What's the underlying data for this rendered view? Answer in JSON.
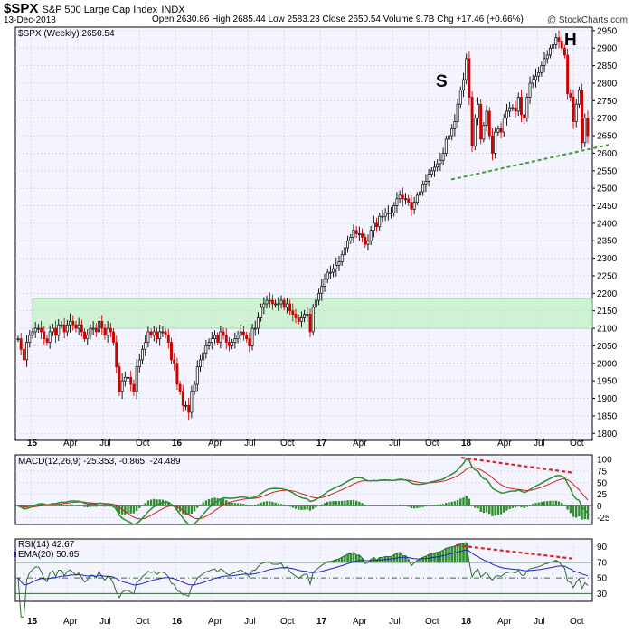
{
  "header": {
    "symbol": "$SPX",
    "name": "S&P 500 Large Cap Index",
    "exchange": "INDX",
    "date": "13-Dec-2018",
    "ohlc_text": "Open 2630.86  High 2685.44  Low 2583.23  Close 2650.54  Volume 9.7B  Chg +17.46 (+0.66%)",
    "brand": "@ StockCharts.com"
  },
  "chart_data": [
    {
      "type": "candlestick",
      "legend": "$SPX (Weekly) 2650.54",
      "ylim": [
        1780,
        2960
      ],
      "yticks": [
        1800,
        1850,
        1900,
        1950,
        2000,
        2050,
        2100,
        2150,
        2200,
        2250,
        2300,
        2350,
        2400,
        2450,
        2500,
        2550,
        2600,
        2650,
        2700,
        2750,
        2800,
        2850,
        2900,
        2950
      ],
      "xticks": [
        "15",
        "Apr",
        "Jul",
        "Oct",
        "16",
        "Apr",
        "Jul",
        "Oct",
        "17",
        "Apr",
        "Jul",
        "Oct",
        "18",
        "Apr",
        "Jul",
        "Oct"
      ],
      "support_zone": [
        2100,
        2185
      ],
      "trendline": [
        [
          2525,
          2620
        ]
      ],
      "annotations": [
        {
          "text": "S",
          "at": "Jan 2018 peak"
        },
        {
          "text": "H",
          "at": "Sep 2018 peak"
        }
      ],
      "weekly_close": [
        2070,
        2040,
        2010,
        2060,
        2080,
        2090,
        2100,
        2100,
        2090,
        2070,
        2060,
        2090,
        2100,
        2080,
        2110,
        2110,
        2090,
        2110,
        2120,
        2110,
        2100,
        2110,
        2090,
        2070,
        2080,
        2100,
        2100,
        2090,
        2120,
        2100,
        2080,
        2100,
        2090,
        2060,
        1990,
        1920,
        1950,
        1960,
        1960,
        1940,
        1920,
        1990,
        2010,
        2040,
        2060,
        2090,
        2080,
        2090,
        2070,
        2090,
        2090,
        2080,
        2060,
        2010,
        2000,
        1940,
        1920,
        1880,
        1880,
        1860,
        1920,
        1940,
        1990,
        2010,
        2030,
        2050,
        2060,
        2070,
        2080,
        2060,
        2090,
        2080,
        2060,
        2050,
        2060,
        2070,
        2080,
        2090,
        2080,
        2070,
        2050,
        2100,
        2100,
        2130,
        2160,
        2170,
        2180,
        2180,
        2170,
        2170,
        2170,
        2180,
        2160,
        2170,
        2150,
        2140,
        2130,
        2120,
        2130,
        2140,
        2140,
        2090,
        2160,
        2180,
        2200,
        2220,
        2240,
        2260,
        2260,
        2270,
        2280,
        2290,
        2310,
        2330,
        2350,
        2360,
        2380,
        2370,
        2370,
        2360,
        2340,
        2350,
        2380,
        2400,
        2390,
        2420,
        2420,
        2430,
        2430,
        2430,
        2450,
        2470,
        2480,
        2470,
        2470,
        2460,
        2440,
        2460,
        2480,
        2490,
        2510,
        2520,
        2540,
        2550,
        2560,
        2570,
        2580,
        2600,
        2640,
        2650,
        2670,
        2690,
        2740,
        2780,
        2810,
        2870,
        2760,
        2620,
        2700,
        2740,
        2640,
        2680,
        2720,
        2650,
        2600,
        2660,
        2670,
        2660,
        2700,
        2720,
        2730,
        2730,
        2720,
        2760,
        2710,
        2700,
        2760,
        2800,
        2810,
        2820,
        2830,
        2850,
        2870,
        2880,
        2900,
        2910,
        2930,
        2920,
        2900,
        2880,
        2770,
        2760,
        2690,
        2740,
        2780,
        2630,
        2700,
        2650
      ]
    },
    {
      "type": "line",
      "legend": "MACD(12,26,9) -25.353, -0.865, -24.489",
      "ylim": [
        -40,
        110
      ],
      "yticks": [
        -25,
        0,
        25,
        50,
        75,
        100
      ],
      "series": [
        {
          "name": "MACD",
          "color": "#2e8b2e"
        },
        {
          "name": "Signal",
          "color": "#d42020"
        },
        {
          "name": "Histogram",
          "color": "#3a9a3a"
        }
      ],
      "divergence_line": "red dashed from Jan 2018 peak to Oct 2018"
    },
    {
      "type": "line",
      "legend_rsi": "RSI(14) 42.67",
      "legend_ema": "EMA(20) 50.65",
      "ylim": [
        20,
        100
      ],
      "yticks": [
        30,
        50,
        70,
        90
      ],
      "reference_levels": [
        30,
        50,
        70
      ],
      "series": [
        {
          "name": "RSI(14)",
          "color": "#2e6b2e"
        },
        {
          "name": "EMA(20)",
          "color": "#2020c0"
        }
      ],
      "divergence_line": "red dashed from Jan 2018 peak to Oct 2018"
    }
  ]
}
